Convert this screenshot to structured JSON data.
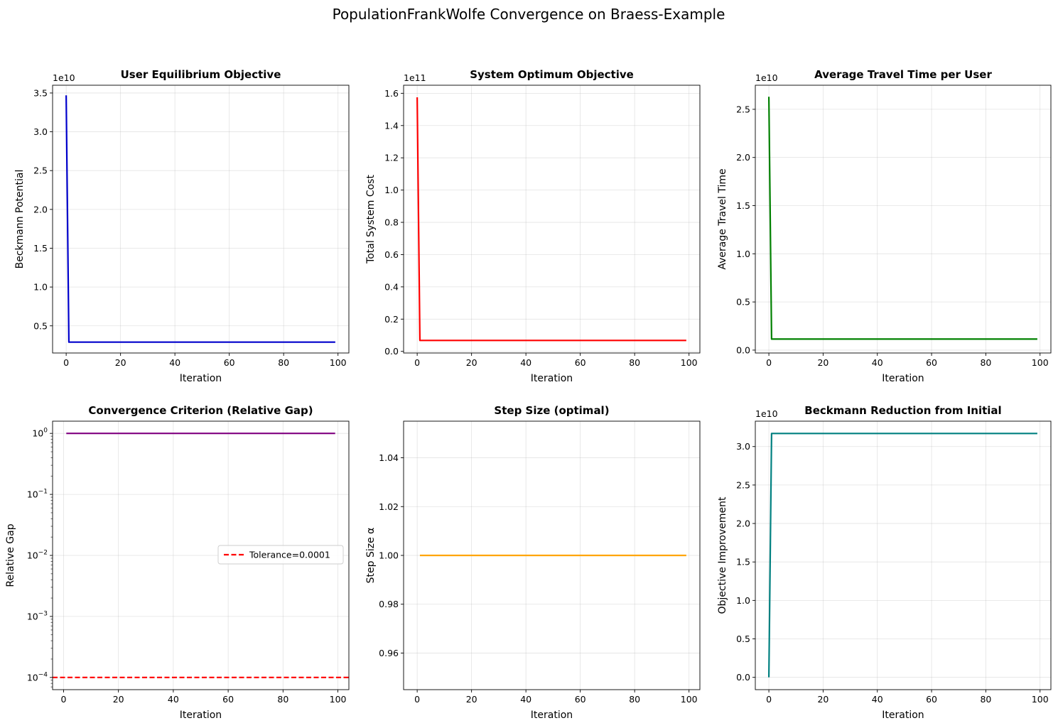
{
  "figure_title": "PopulationFrankWolfe Convergence on Braess-Example",
  "chart_data": [
    {
      "type": "line",
      "title": "User Equilibrium Objective",
      "xlabel": "Iteration",
      "ylabel": "Beckmann Potential",
      "offset_label": "1e10",
      "scale": "linear",
      "xlim": [
        -5,
        104
      ],
      "ylim": [
        0.15,
        3.6
      ],
      "xticks": [
        0,
        20,
        40,
        60,
        80,
        100
      ],
      "yticks": [
        0.5,
        1.0,
        1.5,
        2.0,
        2.5,
        3.0,
        3.5
      ],
      "ytick_labels": [
        "0.5",
        "1.0",
        "1.5",
        "2.0",
        "2.5",
        "3.0",
        "3.5"
      ],
      "grid": true,
      "series": [
        {
          "color": "#0000cc",
          "x": [
            0,
            1,
            99
          ],
          "y": [
            3.47,
            0.29,
            0.29
          ]
        }
      ]
    },
    {
      "type": "line",
      "title": "System Optimum Objective",
      "xlabel": "Iteration",
      "ylabel": "Total System Cost",
      "offset_label": "1e11",
      "scale": "linear",
      "xlim": [
        -5,
        104
      ],
      "ylim": [
        -0.01,
        1.65
      ],
      "xticks": [
        0,
        20,
        40,
        60,
        80,
        100
      ],
      "yticks": [
        0.0,
        0.2,
        0.4,
        0.6,
        0.8,
        1.0,
        1.2,
        1.4,
        1.6
      ],
      "ytick_labels": [
        "0.0",
        "0.2",
        "0.4",
        "0.6",
        "0.8",
        "1.0",
        "1.2",
        "1.4",
        "1.6"
      ],
      "grid": true,
      "series": [
        {
          "color": "#ff0000",
          "x": [
            0,
            1,
            99
          ],
          "y": [
            1.575,
            0.068,
            0.068
          ]
        }
      ]
    },
    {
      "type": "line",
      "title": "Average Travel Time per User",
      "xlabel": "Iteration",
      "ylabel": "Average Travel Time",
      "offset_label": "1e10",
      "scale": "linear",
      "xlim": [
        -5,
        104
      ],
      "ylim": [
        -0.03,
        2.75
      ],
      "xticks": [
        0,
        20,
        40,
        60,
        80,
        100
      ],
      "yticks": [
        0.0,
        0.5,
        1.0,
        1.5,
        2.0,
        2.5
      ],
      "ytick_labels": [
        "0.0",
        "0.5",
        "1.0",
        "1.5",
        "2.0",
        "2.5"
      ],
      "grid": true,
      "series": [
        {
          "color": "#008000",
          "x": [
            0,
            1,
            99
          ],
          "y": [
            2.63,
            0.115,
            0.115
          ]
        }
      ]
    },
    {
      "type": "line",
      "title": "Convergence Criterion (Relative Gap)",
      "xlabel": "Iteration",
      "ylabel": "Relative Gap",
      "scale": "log",
      "xlim": [
        -4,
        104
      ],
      "ylim": [
        -4.2,
        0.2
      ],
      "xticks": [
        0,
        20,
        40,
        60,
        80,
        100
      ],
      "yticks": [
        0,
        -1,
        -2,
        -3,
        -4
      ],
      "ytick_labels": [
        "10^0",
        "10^-1",
        "10^-2",
        "10^-3",
        "10^-4"
      ],
      "grid": true,
      "legend": "center-right",
      "series": [
        {
          "color": "#800080",
          "x": [
            1,
            99
          ],
          "y": [
            1.0,
            1.0
          ]
        },
        {
          "name": "Tolerance=0.0001",
          "color": "#ff0000",
          "dashed": true,
          "full_width": true,
          "x": [
            -4,
            104
          ],
          "y": [
            0.0001,
            0.0001
          ]
        }
      ]
    },
    {
      "type": "line",
      "title": "Step Size (optimal)",
      "xlabel": "Iteration",
      "ylabel": "Step Size α",
      "scale": "linear",
      "xlim": [
        -5,
        104
      ],
      "ylim": [
        0.945,
        1.055
      ],
      "xticks": [
        0,
        20,
        40,
        60,
        80,
        100
      ],
      "yticks": [
        0.96,
        0.98,
        1.0,
        1.02,
        1.04
      ],
      "ytick_labels": [
        "0.96",
        "0.98",
        "1.00",
        "1.02",
        "1.04"
      ],
      "grid": true,
      "series": [
        {
          "color": "#ffa500",
          "x": [
            1,
            99
          ],
          "y": [
            1.0,
            1.0
          ]
        }
      ]
    },
    {
      "type": "line",
      "title": "Beckmann Reduction from Initial",
      "xlabel": "Iteration",
      "ylabel": "Objective Improvement",
      "offset_label": "1e10",
      "scale": "linear",
      "xlim": [
        -5,
        104
      ],
      "ylim": [
        -0.16,
        3.33
      ],
      "xticks": [
        0,
        20,
        40,
        60,
        80,
        100
      ],
      "yticks": [
        0.0,
        0.5,
        1.0,
        1.5,
        2.0,
        2.5,
        3.0
      ],
      "ytick_labels": [
        "0.0",
        "0.5",
        "1.0",
        "1.5",
        "2.0",
        "2.5",
        "3.0"
      ],
      "grid": true,
      "series": [
        {
          "color": "#008080",
          "x": [
            0,
            1,
            99
          ],
          "y": [
            0.0,
            3.17,
            3.17
          ]
        }
      ]
    }
  ]
}
